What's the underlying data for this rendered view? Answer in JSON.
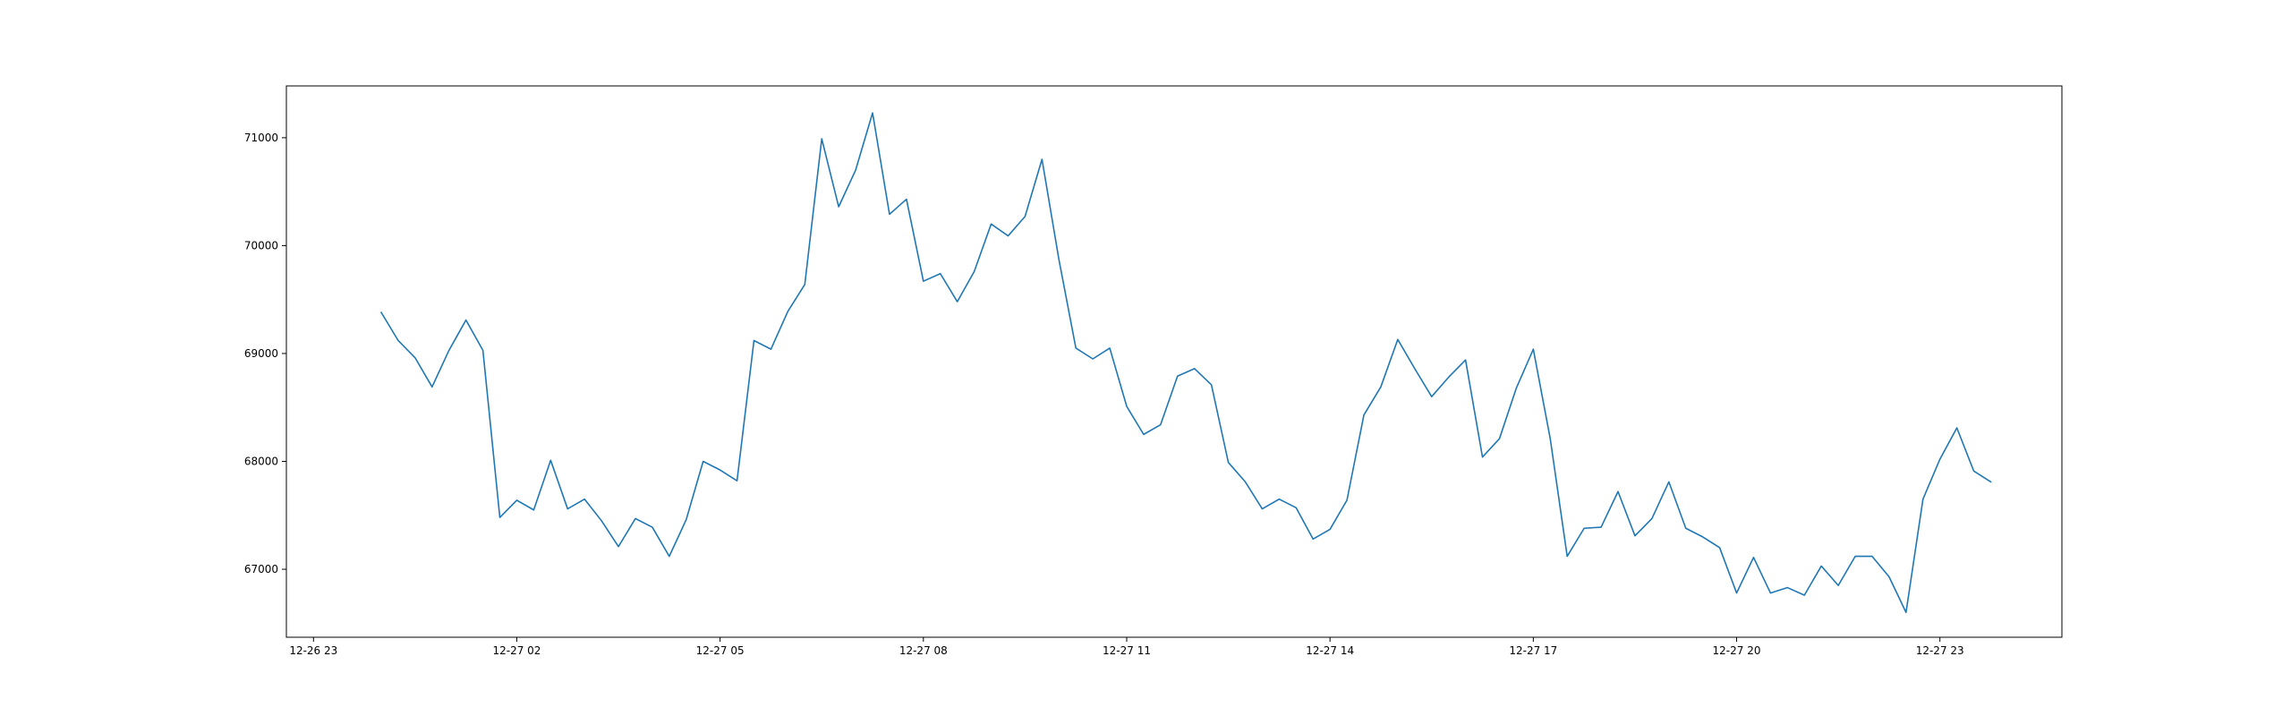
{
  "chart_data": {
    "type": "line",
    "title": "",
    "xlabel": "",
    "ylabel": "",
    "grid": false,
    "line_color": "#1f77b4",
    "xlim": [
      "2023-12-26 22:36",
      "2023-12-28 00:48"
    ],
    "ylim": [
      66370,
      71480
    ],
    "x_ticks": [
      {
        "value": "2023-12-26 23:00",
        "label": "12-26 23"
      },
      {
        "value": "2023-12-27 02:00",
        "label": "12-27 02"
      },
      {
        "value": "2023-12-27 05:00",
        "label": "12-27 05"
      },
      {
        "value": "2023-12-27 08:00",
        "label": "12-27 08"
      },
      {
        "value": "2023-12-27 11:00",
        "label": "12-27 11"
      },
      {
        "value": "2023-12-27 14:00",
        "label": "12-27 14"
      },
      {
        "value": "2023-12-27 17:00",
        "label": "12-27 17"
      },
      {
        "value": "2023-12-27 20:00",
        "label": "12-27 20"
      },
      {
        "value": "2023-12-27 23:00",
        "label": "12-27 23"
      }
    ],
    "y_ticks": [
      {
        "value": 67000,
        "label": "67000"
      },
      {
        "value": 68000,
        "label": "68000"
      },
      {
        "value": 69000,
        "label": "69000"
      },
      {
        "value": 70000,
        "label": "70000"
      },
      {
        "value": 71000,
        "label": "71000"
      }
    ],
    "series": [
      {
        "x_start": "2023-12-27 00:00",
        "x_step_minutes": 15,
        "values": [
          69380,
          69120,
          68960,
          68690,
          69030,
          69310,
          69030,
          67480,
          67640,
          67550,
          68010,
          67560,
          67650,
          67450,
          67210,
          67470,
          67390,
          67120,
          67460,
          68000,
          67920,
          67820,
          69120,
          69040,
          69390,
          69640,
          70990,
          70360,
          70700,
          71230,
          70290,
          70430,
          69670,
          69740,
          69480,
          69760,
          70200,
          70090,
          70270,
          70800,
          69870,
          69050,
          68950,
          69050,
          68510,
          68250,
          68340,
          68790,
          68860,
          68710,
          67990,
          67810,
          67560,
          67650,
          67570,
          67280,
          67370,
          67640,
          68430,
          68690,
          69130,
          68860,
          68600,
          68780,
          68940,
          68040,
          68210,
          68680,
          69040,
          68210,
          67120,
          67380,
          67390,
          67720,
          67310,
          67470,
          67810,
          67380,
          67300,
          67200,
          66780,
          67110,
          66780,
          66830,
          66760,
          67030,
          66850,
          67120,
          67120,
          66930,
          66600,
          67650,
          68020,
          68310,
          67910,
          67810
        ]
      }
    ]
  }
}
